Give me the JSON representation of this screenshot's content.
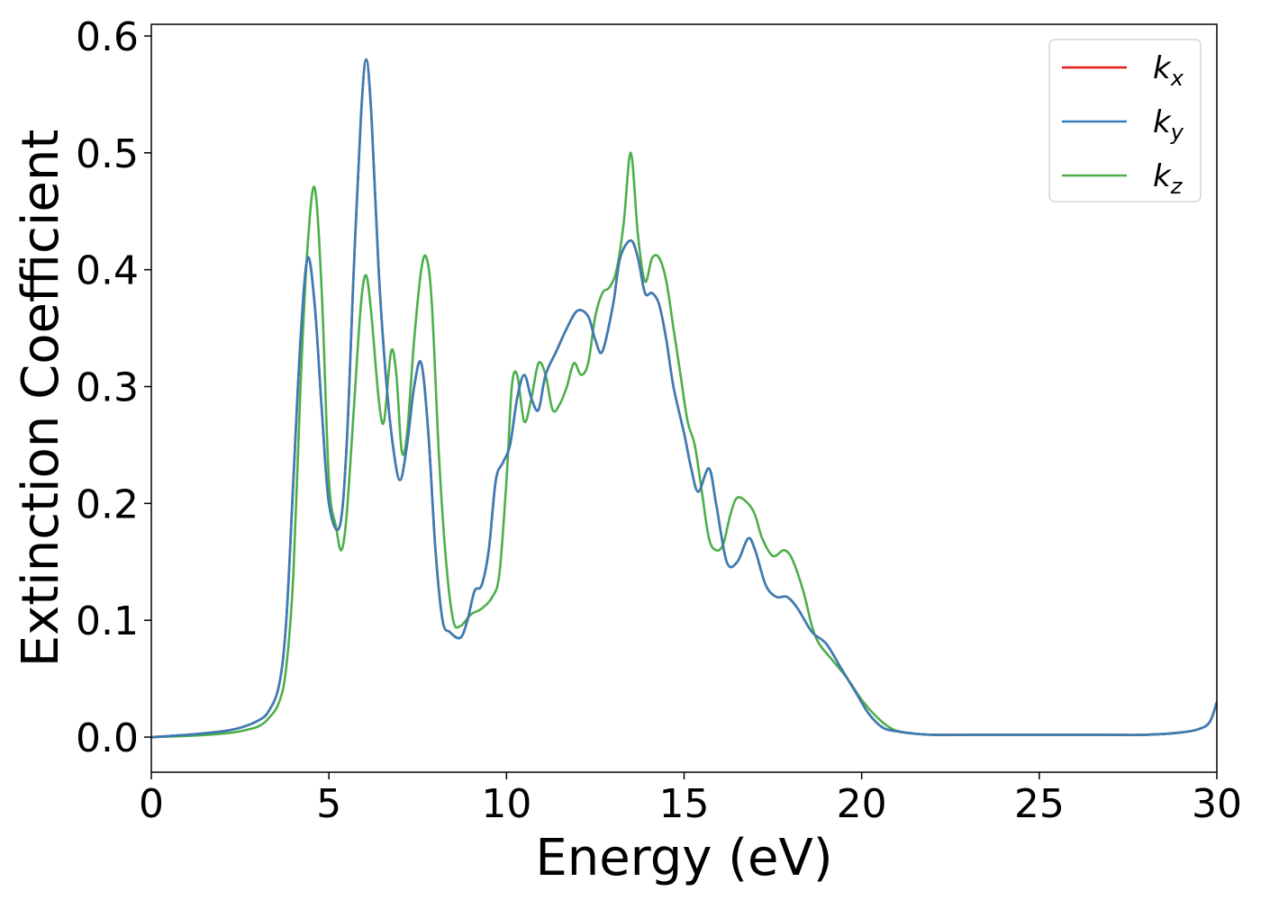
{
  "chart_data": {
    "type": "line",
    "title": "",
    "xlabel": "Energy (eV)",
    "ylabel": "Extinction Coefficient",
    "xlim": [
      0,
      30
    ],
    "ylim": [
      -0.03,
      0.61
    ],
    "xticks": [
      0,
      5,
      10,
      15,
      20,
      25,
      30
    ],
    "xtick_labels": [
      "0",
      "5",
      "10",
      "15",
      "20",
      "25",
      "30"
    ],
    "yticks": [
      0.0,
      0.1,
      0.2,
      0.3,
      0.4,
      0.5,
      0.6
    ],
    "ytick_labels": [
      "0.0",
      "0.1",
      "0.2",
      "0.3",
      "0.4",
      "0.5",
      "0.6"
    ],
    "grid": false,
    "legend_position": "top-right",
    "series": [
      {
        "name": "k_x",
        "legend_base": "k",
        "legend_sub": "x",
        "color": "#e41a1c",
        "x": [
          0,
          1,
          2,
          2.5,
          3,
          3.3,
          3.6,
          3.8,
          4.0,
          4.2,
          4.4,
          4.6,
          4.8,
          5.0,
          5.3,
          5.5,
          5.7,
          5.9,
          6.05,
          6.2,
          6.4,
          6.6,
          6.8,
          7.0,
          7.2,
          7.4,
          7.6,
          7.8,
          8.0,
          8.2,
          8.4,
          8.7,
          8.9,
          9.1,
          9.3,
          9.5,
          9.7,
          9.9,
          10.1,
          10.3,
          10.5,
          10.7,
          10.9,
          11.1,
          11.4,
          11.7,
          12.0,
          12.3,
          12.5,
          12.7,
          13.0,
          13.2,
          13.5,
          13.7,
          13.9,
          14.1,
          14.3,
          14.5,
          14.7,
          15.0,
          15.2,
          15.4,
          15.7,
          15.9,
          16.2,
          16.5,
          16.8,
          17.0,
          17.3,
          17.6,
          17.9,
          18.2,
          18.6,
          19.0,
          19.4,
          19.8,
          20.2,
          20.6,
          21.0,
          21.5,
          22,
          23,
          24,
          25,
          26,
          27,
          28,
          29,
          29.5,
          29.8,
          30
        ],
        "y": [
          0.0,
          0.002,
          0.005,
          0.008,
          0.014,
          0.022,
          0.045,
          0.1,
          0.22,
          0.34,
          0.41,
          0.37,
          0.28,
          0.2,
          0.18,
          0.25,
          0.4,
          0.53,
          0.58,
          0.53,
          0.4,
          0.31,
          0.25,
          0.22,
          0.25,
          0.3,
          0.32,
          0.26,
          0.16,
          0.1,
          0.09,
          0.085,
          0.1,
          0.125,
          0.13,
          0.16,
          0.22,
          0.235,
          0.25,
          0.29,
          0.31,
          0.29,
          0.28,
          0.31,
          0.33,
          0.35,
          0.365,
          0.36,
          0.34,
          0.33,
          0.37,
          0.41,
          0.425,
          0.41,
          0.38,
          0.38,
          0.37,
          0.34,
          0.3,
          0.26,
          0.23,
          0.21,
          0.23,
          0.2,
          0.15,
          0.15,
          0.17,
          0.16,
          0.13,
          0.12,
          0.12,
          0.11,
          0.09,
          0.08,
          0.06,
          0.04,
          0.02,
          0.008,
          0.005,
          0.003,
          0.002,
          0.002,
          0.002,
          0.002,
          0.002,
          0.002,
          0.002,
          0.004,
          0.007,
          0.013,
          0.03
        ]
      },
      {
        "name": "k_y",
        "legend_base": "k",
        "legend_sub": "y",
        "color": "#377eb8",
        "x": [
          0,
          1,
          2,
          2.5,
          3,
          3.3,
          3.6,
          3.8,
          4.0,
          4.2,
          4.4,
          4.6,
          4.8,
          5.0,
          5.3,
          5.5,
          5.7,
          5.9,
          6.05,
          6.2,
          6.4,
          6.6,
          6.8,
          7.0,
          7.2,
          7.4,
          7.6,
          7.8,
          8.0,
          8.2,
          8.4,
          8.7,
          8.9,
          9.1,
          9.3,
          9.5,
          9.7,
          9.9,
          10.1,
          10.3,
          10.5,
          10.7,
          10.9,
          11.1,
          11.4,
          11.7,
          12.0,
          12.3,
          12.5,
          12.7,
          13.0,
          13.2,
          13.5,
          13.7,
          13.9,
          14.1,
          14.3,
          14.5,
          14.7,
          15.0,
          15.2,
          15.4,
          15.7,
          15.9,
          16.2,
          16.5,
          16.8,
          17.0,
          17.3,
          17.6,
          17.9,
          18.2,
          18.6,
          19.0,
          19.4,
          19.8,
          20.2,
          20.6,
          21.0,
          21.5,
          22,
          23,
          24,
          25,
          26,
          27,
          28,
          29,
          29.5,
          29.8,
          30
        ],
        "y": [
          0.0,
          0.002,
          0.005,
          0.008,
          0.014,
          0.022,
          0.045,
          0.1,
          0.22,
          0.34,
          0.41,
          0.37,
          0.28,
          0.2,
          0.18,
          0.25,
          0.4,
          0.53,
          0.58,
          0.53,
          0.4,
          0.31,
          0.25,
          0.22,
          0.25,
          0.3,
          0.32,
          0.26,
          0.16,
          0.1,
          0.09,
          0.085,
          0.1,
          0.125,
          0.13,
          0.16,
          0.22,
          0.235,
          0.25,
          0.29,
          0.31,
          0.29,
          0.28,
          0.31,
          0.33,
          0.35,
          0.365,
          0.36,
          0.34,
          0.33,
          0.37,
          0.41,
          0.425,
          0.41,
          0.38,
          0.38,
          0.37,
          0.34,
          0.3,
          0.26,
          0.23,
          0.21,
          0.23,
          0.2,
          0.15,
          0.15,
          0.17,
          0.16,
          0.13,
          0.12,
          0.12,
          0.11,
          0.09,
          0.08,
          0.06,
          0.04,
          0.02,
          0.008,
          0.005,
          0.003,
          0.002,
          0.002,
          0.002,
          0.002,
          0.002,
          0.002,
          0.002,
          0.004,
          0.007,
          0.013,
          0.03
        ]
      },
      {
        "name": "k_z",
        "legend_base": "k",
        "legend_sub": "z",
        "color": "#4daf4a",
        "x": [
          0,
          1,
          2,
          2.5,
          3,
          3.3,
          3.6,
          3.8,
          4.0,
          4.2,
          4.4,
          4.6,
          4.8,
          5.0,
          5.2,
          5.35,
          5.5,
          5.7,
          5.9,
          6.05,
          6.2,
          6.4,
          6.55,
          6.75,
          6.9,
          7.05,
          7.2,
          7.4,
          7.6,
          7.75,
          7.9,
          8.1,
          8.3,
          8.5,
          8.7,
          9.0,
          9.3,
          9.6,
          9.8,
          10.0,
          10.15,
          10.3,
          10.5,
          10.7,
          10.9,
          11.1,
          11.3,
          11.5,
          11.7,
          11.9,
          12.1,
          12.3,
          12.5,
          12.7,
          12.9,
          13.1,
          13.3,
          13.5,
          13.7,
          13.9,
          14.1,
          14.3,
          14.5,
          14.7,
          14.9,
          15.1,
          15.3,
          15.5,
          15.7,
          15.9,
          16.1,
          16.3,
          16.5,
          16.8,
          17.0,
          17.2,
          17.5,
          17.8,
          18.0,
          18.2,
          18.4,
          18.6,
          18.8,
          19.2,
          19.6,
          20.0,
          20.4,
          20.8,
          21.2,
          22,
          23,
          24,
          25,
          26,
          27,
          28,
          29,
          29.5,
          29.8,
          30
        ],
        "y": [
          0.0,
          0.001,
          0.003,
          0.005,
          0.009,
          0.016,
          0.03,
          0.06,
          0.14,
          0.3,
          0.42,
          0.47,
          0.38,
          0.22,
          0.18,
          0.16,
          0.19,
          0.28,
          0.37,
          0.395,
          0.36,
          0.29,
          0.27,
          0.33,
          0.31,
          0.245,
          0.26,
          0.34,
          0.4,
          0.41,
          0.37,
          0.24,
          0.15,
          0.1,
          0.095,
          0.105,
          0.11,
          0.12,
          0.14,
          0.22,
          0.3,
          0.31,
          0.27,
          0.29,
          0.32,
          0.31,
          0.28,
          0.285,
          0.3,
          0.32,
          0.31,
          0.32,
          0.36,
          0.38,
          0.385,
          0.4,
          0.44,
          0.5,
          0.43,
          0.39,
          0.41,
          0.41,
          0.39,
          0.35,
          0.31,
          0.27,
          0.25,
          0.21,
          0.17,
          0.16,
          0.165,
          0.19,
          0.205,
          0.2,
          0.19,
          0.17,
          0.155,
          0.16,
          0.155,
          0.14,
          0.12,
          0.095,
          0.08,
          0.065,
          0.05,
          0.032,
          0.018,
          0.008,
          0.004,
          0.002,
          0.002,
          0.002,
          0.002,
          0.002,
          0.002,
          0.002,
          0.004,
          0.007,
          0.013,
          0.03
        ]
      }
    ]
  }
}
